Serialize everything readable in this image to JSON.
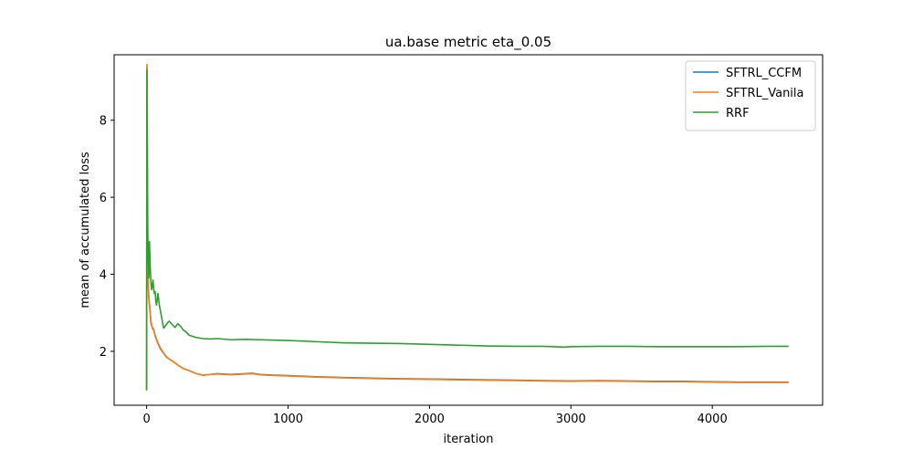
{
  "chart_data": {
    "type": "line",
    "title": "ua.base metric eta_0.05",
    "xlabel": "iteration",
    "ylabel": "mean of accumulated loss",
    "xlim": [
      -230,
      4780
    ],
    "ylim": [
      0.6,
      9.7
    ],
    "xticks": [
      0,
      1000,
      2000,
      3000,
      4000
    ],
    "xtick_labels": [
      "0",
      "1000",
      "2000",
      "3000",
      "4000"
    ],
    "yticks": [
      2,
      4,
      6,
      8
    ],
    "ytick_labels": [
      "2",
      "4",
      "6",
      "8"
    ],
    "grid": false,
    "legend_position": "top-right",
    "series": [
      {
        "name": "SFTRL_CCFM",
        "color": "#1f77b4",
        "x": [
          0,
          2,
          4,
          6,
          8,
          10,
          15,
          20,
          25,
          30,
          40,
          50,
          60,
          70,
          80,
          100,
          120,
          140,
          160,
          180,
          200,
          230,
          260,
          300,
          350,
          400,
          450,
          500,
          600,
          700,
          750,
          800,
          900,
          1000,
          1200,
          1400,
          1600,
          1800,
          2000,
          2200,
          2400,
          2600,
          2800,
          3000,
          3200,
          3400,
          3600,
          3800,
          4000,
          4200,
          4400,
          4540
        ],
        "y": [
          0.98,
          9.4,
          7.6,
          5.2,
          4.4,
          3.9,
          3.4,
          3.2,
          3.0,
          2.75,
          2.6,
          2.55,
          2.4,
          2.3,
          2.2,
          2.05,
          1.95,
          1.85,
          1.8,
          1.75,
          1.7,
          1.62,
          1.55,
          1.5,
          1.42,
          1.38,
          1.4,
          1.42,
          1.4,
          1.42,
          1.43,
          1.4,
          1.38,
          1.37,
          1.34,
          1.32,
          1.3,
          1.29,
          1.28,
          1.27,
          1.26,
          1.25,
          1.24,
          1.23,
          1.24,
          1.23,
          1.22,
          1.22,
          1.21,
          1.2,
          1.2,
          1.2
        ]
      },
      {
        "name": "SFTRL_Vanila",
        "color": "#ff7f0e",
        "x": [
          0,
          2,
          4,
          6,
          8,
          10,
          15,
          20,
          25,
          30,
          40,
          50,
          60,
          70,
          80,
          100,
          120,
          140,
          160,
          180,
          200,
          230,
          260,
          300,
          350,
          400,
          450,
          500,
          600,
          700,
          750,
          800,
          900,
          1000,
          1200,
          1400,
          1600,
          1800,
          2000,
          2200,
          2400,
          2600,
          2800,
          3000,
          3200,
          3400,
          3600,
          3800,
          4000,
          4200,
          4400,
          4540
        ],
        "y": [
          0.98,
          9.45,
          7.7,
          5.3,
          4.5,
          3.95,
          3.45,
          3.25,
          3.05,
          2.8,
          2.62,
          2.57,
          2.42,
          2.32,
          2.22,
          2.07,
          1.96,
          1.86,
          1.8,
          1.75,
          1.7,
          1.62,
          1.55,
          1.5,
          1.42,
          1.38,
          1.4,
          1.41,
          1.39,
          1.41,
          1.42,
          1.39,
          1.37,
          1.36,
          1.33,
          1.31,
          1.29,
          1.28,
          1.27,
          1.26,
          1.25,
          1.24,
          1.23,
          1.22,
          1.23,
          1.22,
          1.21,
          1.21,
          1.2,
          1.19,
          1.19,
          1.19
        ]
      },
      {
        "name": "RRF",
        "color": "#2ca02c",
        "x": [
          0,
          2,
          4,
          6,
          8,
          10,
          13,
          16,
          20,
          25,
          30,
          35,
          40,
          45,
          50,
          55,
          60,
          65,
          70,
          75,
          80,
          90,
          100,
          110,
          120,
          130,
          140,
          150,
          160,
          180,
          200,
          220,
          240,
          260,
          280,
          300,
          350,
          400,
          450,
          500,
          600,
          700,
          800,
          900,
          1000,
          1200,
          1400,
          1600,
          1800,
          2000,
          2200,
          2400,
          2600,
          2800,
          2950,
          3000,
          3200,
          3400,
          3600,
          3800,
          4000,
          4200,
          4400,
          4540
        ],
        "y": [
          1.0,
          9.3,
          8.0,
          6.3,
          5.2,
          4.6,
          4.2,
          3.9,
          4.85,
          4.2,
          3.8,
          3.6,
          3.7,
          3.85,
          3.6,
          3.5,
          3.55,
          3.3,
          3.2,
          3.35,
          3.5,
          3.2,
          3.0,
          2.8,
          2.6,
          2.65,
          2.7,
          2.75,
          2.78,
          2.7,
          2.62,
          2.72,
          2.65,
          2.55,
          2.5,
          2.42,
          2.36,
          2.33,
          2.32,
          2.33,
          2.3,
          2.31,
          2.3,
          2.29,
          2.28,
          2.25,
          2.22,
          2.21,
          2.2,
          2.18,
          2.16,
          2.14,
          2.13,
          2.13,
          2.11,
          2.12,
          2.13,
          2.13,
          2.12,
          2.12,
          2.12,
          2.12,
          2.13,
          2.13
        ]
      }
    ]
  }
}
